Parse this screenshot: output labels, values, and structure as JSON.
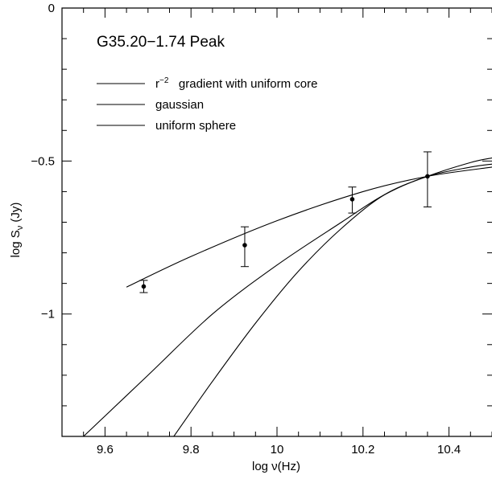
{
  "chart_data": {
    "type": "line",
    "title": "G35.20−1.74   Peak",
    "xlabel": "log ν(Hz)",
    "ylabel": "log S_ν (Jy)",
    "ylabel_main": "log S",
    "ylabel_sub": "ν",
    "ylabel_units": " (Jy)",
    "xlim": [
      9.5,
      10.5
    ],
    "ylim": [
      -1.4,
      0
    ],
    "x_ticks": [
      9.6,
      9.8,
      10,
      10.2,
      10.4
    ],
    "x_tick_labels": [
      "9.6",
      "9.8",
      "10",
      "10.2",
      "10.4"
    ],
    "y_ticks": [
      0,
      -0.5,
      -1
    ],
    "y_tick_labels": [
      "0",
      "−0.5",
      "−1"
    ],
    "x_minor_step": 0.05,
    "y_minor_step": 0.1,
    "grid": false,
    "legend": {
      "placement": "top-left",
      "entries": [
        {
          "label_main": "r",
          "label_sup": "−2",
          "label_rest": "   gradient with uniform core"
        },
        {
          "label_main": "gaussian",
          "label_sup": "",
          "label_rest": ""
        },
        {
          "label_main": "uniform sphere",
          "label_sup": "",
          "label_rest": ""
        }
      ]
    },
    "series": [
      {
        "name": "r−2 gradient with uniform core",
        "x": [
          9.65,
          9.8,
          10.0,
          10.2,
          10.35,
          10.5
        ],
        "y": [
          -0.912,
          -0.812,
          -0.695,
          -0.6,
          -0.55,
          -0.52
        ]
      },
      {
        "name": "gaussian",
        "x": [
          9.55,
          9.7,
          9.85,
          10.0,
          10.15,
          10.25,
          10.35,
          10.45,
          10.5
        ],
        "y": [
          -1.4,
          -1.2,
          -1.0,
          -0.84,
          -0.7,
          -0.61,
          -0.55,
          -0.52,
          -0.51
        ]
      },
      {
        "name": "uniform sphere",
        "x": [
          9.76,
          9.85,
          9.95,
          10.05,
          10.15,
          10.25,
          10.35,
          10.45,
          10.5
        ],
        "y": [
          -1.4,
          -1.22,
          -1.03,
          -0.86,
          -0.72,
          -0.61,
          -0.55,
          -0.505,
          -0.49
        ]
      }
    ],
    "points": {
      "x": [
        9.69,
        9.925,
        10.175,
        10.35
      ],
      "y": [
        -0.91,
        -0.775,
        -0.625,
        -0.55
      ],
      "err_low": [
        0.02,
        0.07,
        0.045,
        0.1
      ],
      "err_high": [
        0.02,
        0.06,
        0.04,
        0.08
      ]
    }
  }
}
